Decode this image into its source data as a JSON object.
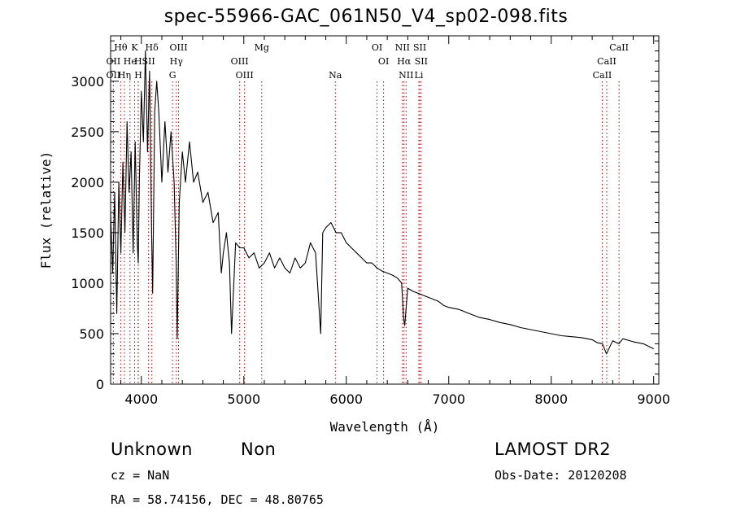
{
  "chart_data": {
    "type": "line",
    "title": "spec-55966-GAC_061N50_V4_sp02-098.fits",
    "xlabel": "Wavelength (Å)",
    "ylabel": "Flux (relative)",
    "xlim": [
      3700,
      9050
    ],
    "ylim": [
      0,
      3450
    ],
    "xticks": [
      4000,
      5000,
      6000,
      7000,
      8000,
      9000
    ],
    "yticks": [
      0,
      500,
      1000,
      1500,
      2000,
      2500,
      3000
    ],
    "grid": false,
    "series": [
      {
        "x": [
          3700,
          3720,
          3740,
          3760,
          3780,
          3800,
          3820,
          3840,
          3860,
          3880,
          3900,
          3920,
          3940,
          3960,
          3970,
          3980,
          4000,
          4020,
          4040,
          4060,
          4080,
          4100,
          4110,
          4130,
          4150,
          4170,
          4200,
          4230,
          4260,
          4290,
          4320,
          4340,
          4350,
          4370,
          4400,
          4430,
          4470,
          4510,
          4550,
          4600,
          4650,
          4700,
          4750,
          4780,
          4800,
          4830,
          4860,
          4880,
          4920,
          4960,
          5000,
          5050,
          5100,
          5150,
          5200,
          5250,
          5300,
          5350,
          5400,
          5450,
          5500,
          5550,
          5600,
          5650,
          5700,
          5750,
          5770,
          5800,
          5850,
          5900,
          5950,
          6000,
          6050,
          6100,
          6150,
          6200,
          6250,
          6300,
          6350,
          6400,
          6450,
          6500,
          6540,
          6560,
          6570,
          6600,
          6650,
          6700,
          6750,
          6800,
          6850,
          6900,
          6950,
          7000,
          7100,
          7200,
          7300,
          7400,
          7500,
          7600,
          7700,
          7800,
          7900,
          8000,
          8100,
          8200,
          8300,
          8400,
          8450,
          8500,
          8540,
          8600,
          8660,
          8700,
          8800,
          8900,
          9000
        ],
        "y": [
          1700,
          1100,
          1900,
          700,
          2000,
          1300,
          2200,
          1500,
          2600,
          1900,
          2300,
          1300,
          2400,
          1400,
          1200,
          2000,
          2900,
          2400,
          3300,
          2300,
          3100,
          1500,
          900,
          2700,
          3000,
          2700,
          2000,
          2600,
          2100,
          2500,
          2000,
          1200,
          450,
          1800,
          2300,
          2000,
          2400,
          2000,
          2100,
          1800,
          1900,
          1600,
          1700,
          1100,
          1300,
          1500,
          1200,
          500,
          1400,
          1350,
          1350,
          1250,
          1300,
          1150,
          1200,
          1300,
          1150,
          1250,
          1150,
          1100,
          1250,
          1150,
          1200,
          1400,
          1300,
          500,
          1500,
          1550,
          1600,
          1500,
          1500,
          1400,
          1350,
          1300,
          1250,
          1200,
          1200,
          1150,
          1120,
          1100,
          1080,
          1050,
          1000,
          650,
          580,
          950,
          920,
          900,
          880,
          860,
          840,
          820,
          780,
          760,
          740,
          700,
          660,
          640,
          610,
          590,
          560,
          540,
          520,
          500,
          480,
          470,
          460,
          440,
          410,
          400,
          300,
          430,
          400,
          450,
          420,
          400,
          350
        ]
      }
    ],
    "spectral_lines": [
      {
        "label": "Hθ",
        "x": 3798,
        "row": 0
      },
      {
        "label": "K",
        "x": 3934,
        "row": 0
      },
      {
        "label": "Hδ",
        "x": 4102,
        "row": 0
      },
      {
        "label": "OIII",
        "x": 4363,
        "row": 0
      },
      {
        "label": "Mg",
        "x": 5175,
        "row": 0
      },
      {
        "label": "OI",
        "x": 6300,
        "row": 0
      },
      {
        "label": "NII",
        "x": 6548,
        "row": 0
      },
      {
        "label": "SII",
        "x": 6717,
        "row": 0
      },
      {
        "label": "CaII",
        "x": 8662,
        "row": 0
      },
      {
        "label": "OII",
        "x": 3727,
        "row": 1
      },
      {
        "label": "He",
        "x": 3889,
        "row": 1
      },
      {
        "label": "H",
        "x": 3968,
        "row": 1
      },
      {
        "label": "SII",
        "x": 4070,
        "row": 1
      },
      {
        "label": "Hγ",
        "x": 4341,
        "row": 1
      },
      {
        "label": "OIII",
        "x": 4959,
        "row": 1
      },
      {
        "label": "OI",
        "x": 6364,
        "row": 1
      },
      {
        "label": "Hα",
        "x": 6563,
        "row": 1
      },
      {
        "label": "SII",
        "x": 6731,
        "row": 1
      },
      {
        "label": "CaII",
        "x": 8542,
        "row": 1
      },
      {
        "label": "OII",
        "x": 3727,
        "row": 2
      },
      {
        "label": "Hη",
        "x": 3835,
        "row": 2
      },
      {
        "label": "H",
        "x": 3970,
        "row": 2
      },
      {
        "label": "G",
        "x": 4304,
        "row": 2
      },
      {
        "label": "OIII",
        "x": 5007,
        "row": 2
      },
      {
        "label": "Na",
        "x": 5893,
        "row": 2
      },
      {
        "label": "NII",
        "x": 6584,
        "row": 2
      },
      {
        "label": "Li",
        "x": 6708,
        "row": 2
      },
      {
        "label": "CaII",
        "x": 8498,
        "row": 2
      }
    ],
    "line_color": "#000000",
    "marker_line_color": "#cc0000"
  },
  "info": {
    "class": "Unknown",
    "subclass": "Non",
    "survey": "LAMOST DR2",
    "cz": "cz = NaN",
    "obs_date": "Obs-Date: 20120208",
    "radec": "RA =  58.74156, DEC =  48.80765"
  }
}
